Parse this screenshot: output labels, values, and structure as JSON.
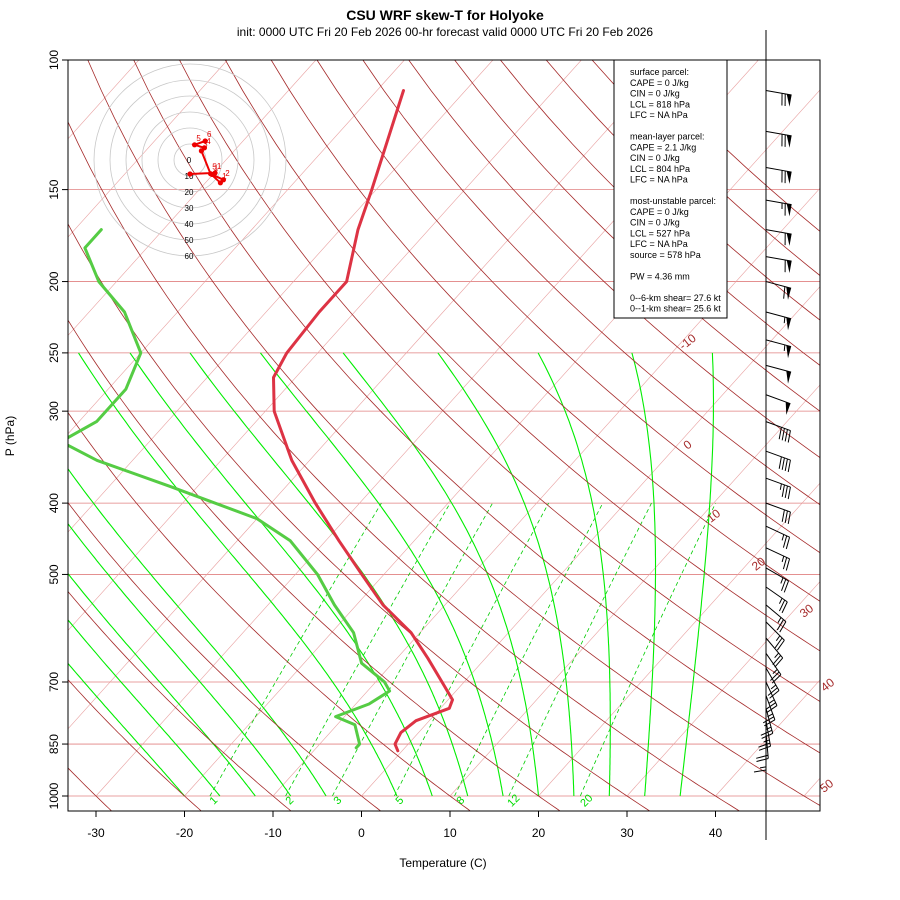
{
  "title": "CSU WRF skew-T for Holyoke",
  "subtitle": "init: 0000 UTC Fri 20 Feb 2026     00-hr forecast valid 0000 UTC Fri 20 Feb 2026",
  "colors": {
    "temperature": "#dd3344",
    "dewpoint": "#55cc44",
    "dry_adiabat": "#a52a2a",
    "moist_adiabat": "#00ee00",
    "mixing_ratio": "#00cc00",
    "isobar": "#e08080",
    "isotherm": "#e8a0a0",
    "hodograph": "#ee0000"
  },
  "chart_data": {
    "type": "line",
    "title": "CSU WRF skew-T for Holyoke",
    "xlabel": "Temperature (C)",
    "ylabel": "P (hPa)",
    "x_ticks": [
      "-30",
      "-20",
      "-10",
      "0",
      "10",
      "20",
      "30",
      "40"
    ],
    "y_ticks": [
      "100",
      "150",
      "200",
      "250",
      "300",
      "400",
      "500",
      "700",
      "850",
      "1000"
    ],
    "pressure_levels": [
      100,
      150,
      200,
      250,
      300,
      400,
      500,
      700,
      850,
      1000
    ],
    "series": [
      {
        "key": "temperature",
        "p": [
          868,
          850,
          820,
          790,
          760,
          740,
          700,
          650,
          600,
          550,
          500,
          450,
          400,
          350,
          300,
          270,
          250,
          220,
          200,
          170,
          150,
          130,
          110
        ],
        "t": [
          -0.5,
          -1.5,
          -2,
          -1.5,
          1,
          0.5,
          -2.5,
          -6.5,
          -11,
          -17,
          -22.5,
          -28.5,
          -35,
          -42,
          -49,
          -52.5,
          -53.5,
          -54,
          -54,
          -58,
          -60.5,
          -63.5,
          -67
        ]
      },
      {
        "key": "dewpoint",
        "p": [
          860,
          850,
          800,
          780,
          750,
          720,
          700,
          660,
          600,
          550,
          500,
          450,
          420,
          380,
          350,
          330,
          310,
          280,
          250,
          220,
          200,
          180,
          170
        ],
        "t": [
          -5.5,
          -5.5,
          -8,
          -11,
          -8.5,
          -7.5,
          -9,
          -13.5,
          -17.5,
          -22.5,
          -27.5,
          -34,
          -40,
          -53,
          -64,
          -70,
          -68,
          -68,
          -70,
          -76,
          -82,
          -87,
          -87
        ]
      }
    ],
    "mixing_ratio_labels": [
      "1",
      "2",
      "3",
      "5",
      "8",
      "12",
      "20"
    ],
    "dry_adiabat_labels": [
      "-10",
      "0",
      "10",
      "20",
      "30",
      "40",
      "50"
    ],
    "wind_barbs": [
      {
        "p": 110,
        "dir": 280,
        "spd": 70
      },
      {
        "p": 125,
        "dir": 280,
        "spd": 70
      },
      {
        "p": 140,
        "dir": 280,
        "spd": 70
      },
      {
        "p": 155,
        "dir": 280,
        "spd": 65
      },
      {
        "p": 170,
        "dir": 280,
        "spd": 60
      },
      {
        "p": 185,
        "dir": 280,
        "spd": 60
      },
      {
        "p": 200,
        "dir": 285,
        "spd": 60
      },
      {
        "p": 220,
        "dir": 285,
        "spd": 55
      },
      {
        "p": 240,
        "dir": 285,
        "spd": 55
      },
      {
        "p": 260,
        "dir": 285,
        "spd": 50
      },
      {
        "p": 285,
        "dir": 290,
        "spd": 50
      },
      {
        "p": 310,
        "dir": 290,
        "spd": 40
      },
      {
        "p": 340,
        "dir": 290,
        "spd": 40
      },
      {
        "p": 370,
        "dir": 290,
        "spd": 35
      },
      {
        "p": 400,
        "dir": 290,
        "spd": 30
      },
      {
        "p": 430,
        "dir": 295,
        "spd": 25
      },
      {
        "p": 460,
        "dir": 295,
        "spd": 25
      },
      {
        "p": 490,
        "dir": 300,
        "spd": 25
      },
      {
        "p": 520,
        "dir": 305,
        "spd": 25
      },
      {
        "p": 550,
        "dir": 310,
        "spd": 25
      },
      {
        "p": 580,
        "dir": 315,
        "spd": 25
      },
      {
        "p": 610,
        "dir": 320,
        "spd": 25
      },
      {
        "p": 640,
        "dir": 325,
        "spd": 25
      },
      {
        "p": 670,
        "dir": 330,
        "spd": 25
      },
      {
        "p": 700,
        "dir": 335,
        "spd": 25
      },
      {
        "p": 730,
        "dir": 340,
        "spd": 25
      },
      {
        "p": 760,
        "dir": 345,
        "spd": 25
      },
      {
        "p": 790,
        "dir": 350,
        "spd": 25
      },
      {
        "p": 820,
        "dir": 355,
        "spd": 20
      },
      {
        "p": 850,
        "dir": 360,
        "spd": 15
      }
    ],
    "hodograph": {
      "ring_labels": [
        "0",
        "10",
        "20",
        "30",
        "40",
        "50",
        "60"
      ],
      "ring_step_kt": 10,
      "points": [
        {
          "label": "0",
          "u": 0,
          "v": 0
        },
        {
          "label": "1",
          "u": 16.5,
          "v": -8.5
        },
        {
          "label": "1",
          "u": 14.5,
          "v": -9.5
        },
        {
          "label": "2",
          "u": 22,
          "v": -13
        },
        {
          "label": "1",
          "u": 20,
          "v": -15
        },
        {
          "label": "5",
          "u": 13.5,
          "v": -9
        },
        {
          "label": "3",
          "u": 7.5,
          "v": 6
        },
        {
          "label": "4",
          "u": 9.5,
          "v": 8
        },
        {
          "label": "5",
          "u": 3,
          "v": 10
        },
        {
          "label": "6",
          "u": 10,
          "v": 12.5
        }
      ]
    }
  },
  "info_box": {
    "lines": [
      "surface parcel:",
      "CAPE = 0 J/kg",
      "CIN = 0 J/kg",
      "LCL = 818 hPa",
      "LFC = NA hPa",
      "",
      "mean-layer parcel:",
      "CAPE = 2.1 J/kg",
      "CIN = 0 J/kg",
      "LCL = 804 hPa",
      "LFC = NA hPa",
      "",
      "most-unstable parcel:",
      "CAPE = 0 J/kg",
      "CIN = 0 J/kg",
      "LCL = 527 hPa",
      "LFC = NA hPa",
      "source = 578 hPa",
      "",
      "PW =  4.36 mm",
      "",
      "0--6-km shear= 27.6 kt",
      "0--1-km shear= 25.6 kt"
    ]
  }
}
